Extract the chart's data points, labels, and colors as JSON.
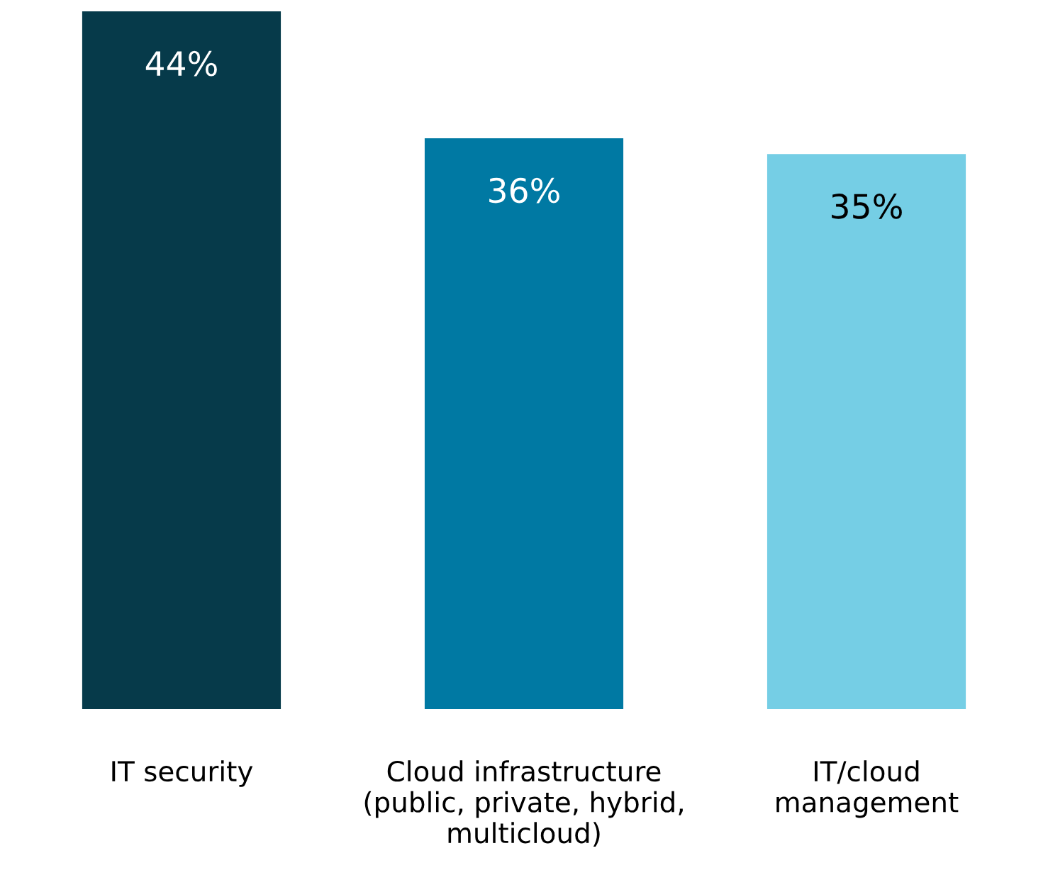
{
  "chart_data": {
    "type": "bar",
    "categories": [
      "IT security",
      "Cloud infrastructure\n(public, private, hybrid,\nmulticloud)",
      "IT/cloud\nmanagement"
    ],
    "values": [
      44,
      36,
      35
    ],
    "colors": [
      "#063a4a",
      "#0079a3",
      "#75cee5"
    ],
    "value_labels": [
      "44%",
      "36%",
      "35%"
    ]
  }
}
